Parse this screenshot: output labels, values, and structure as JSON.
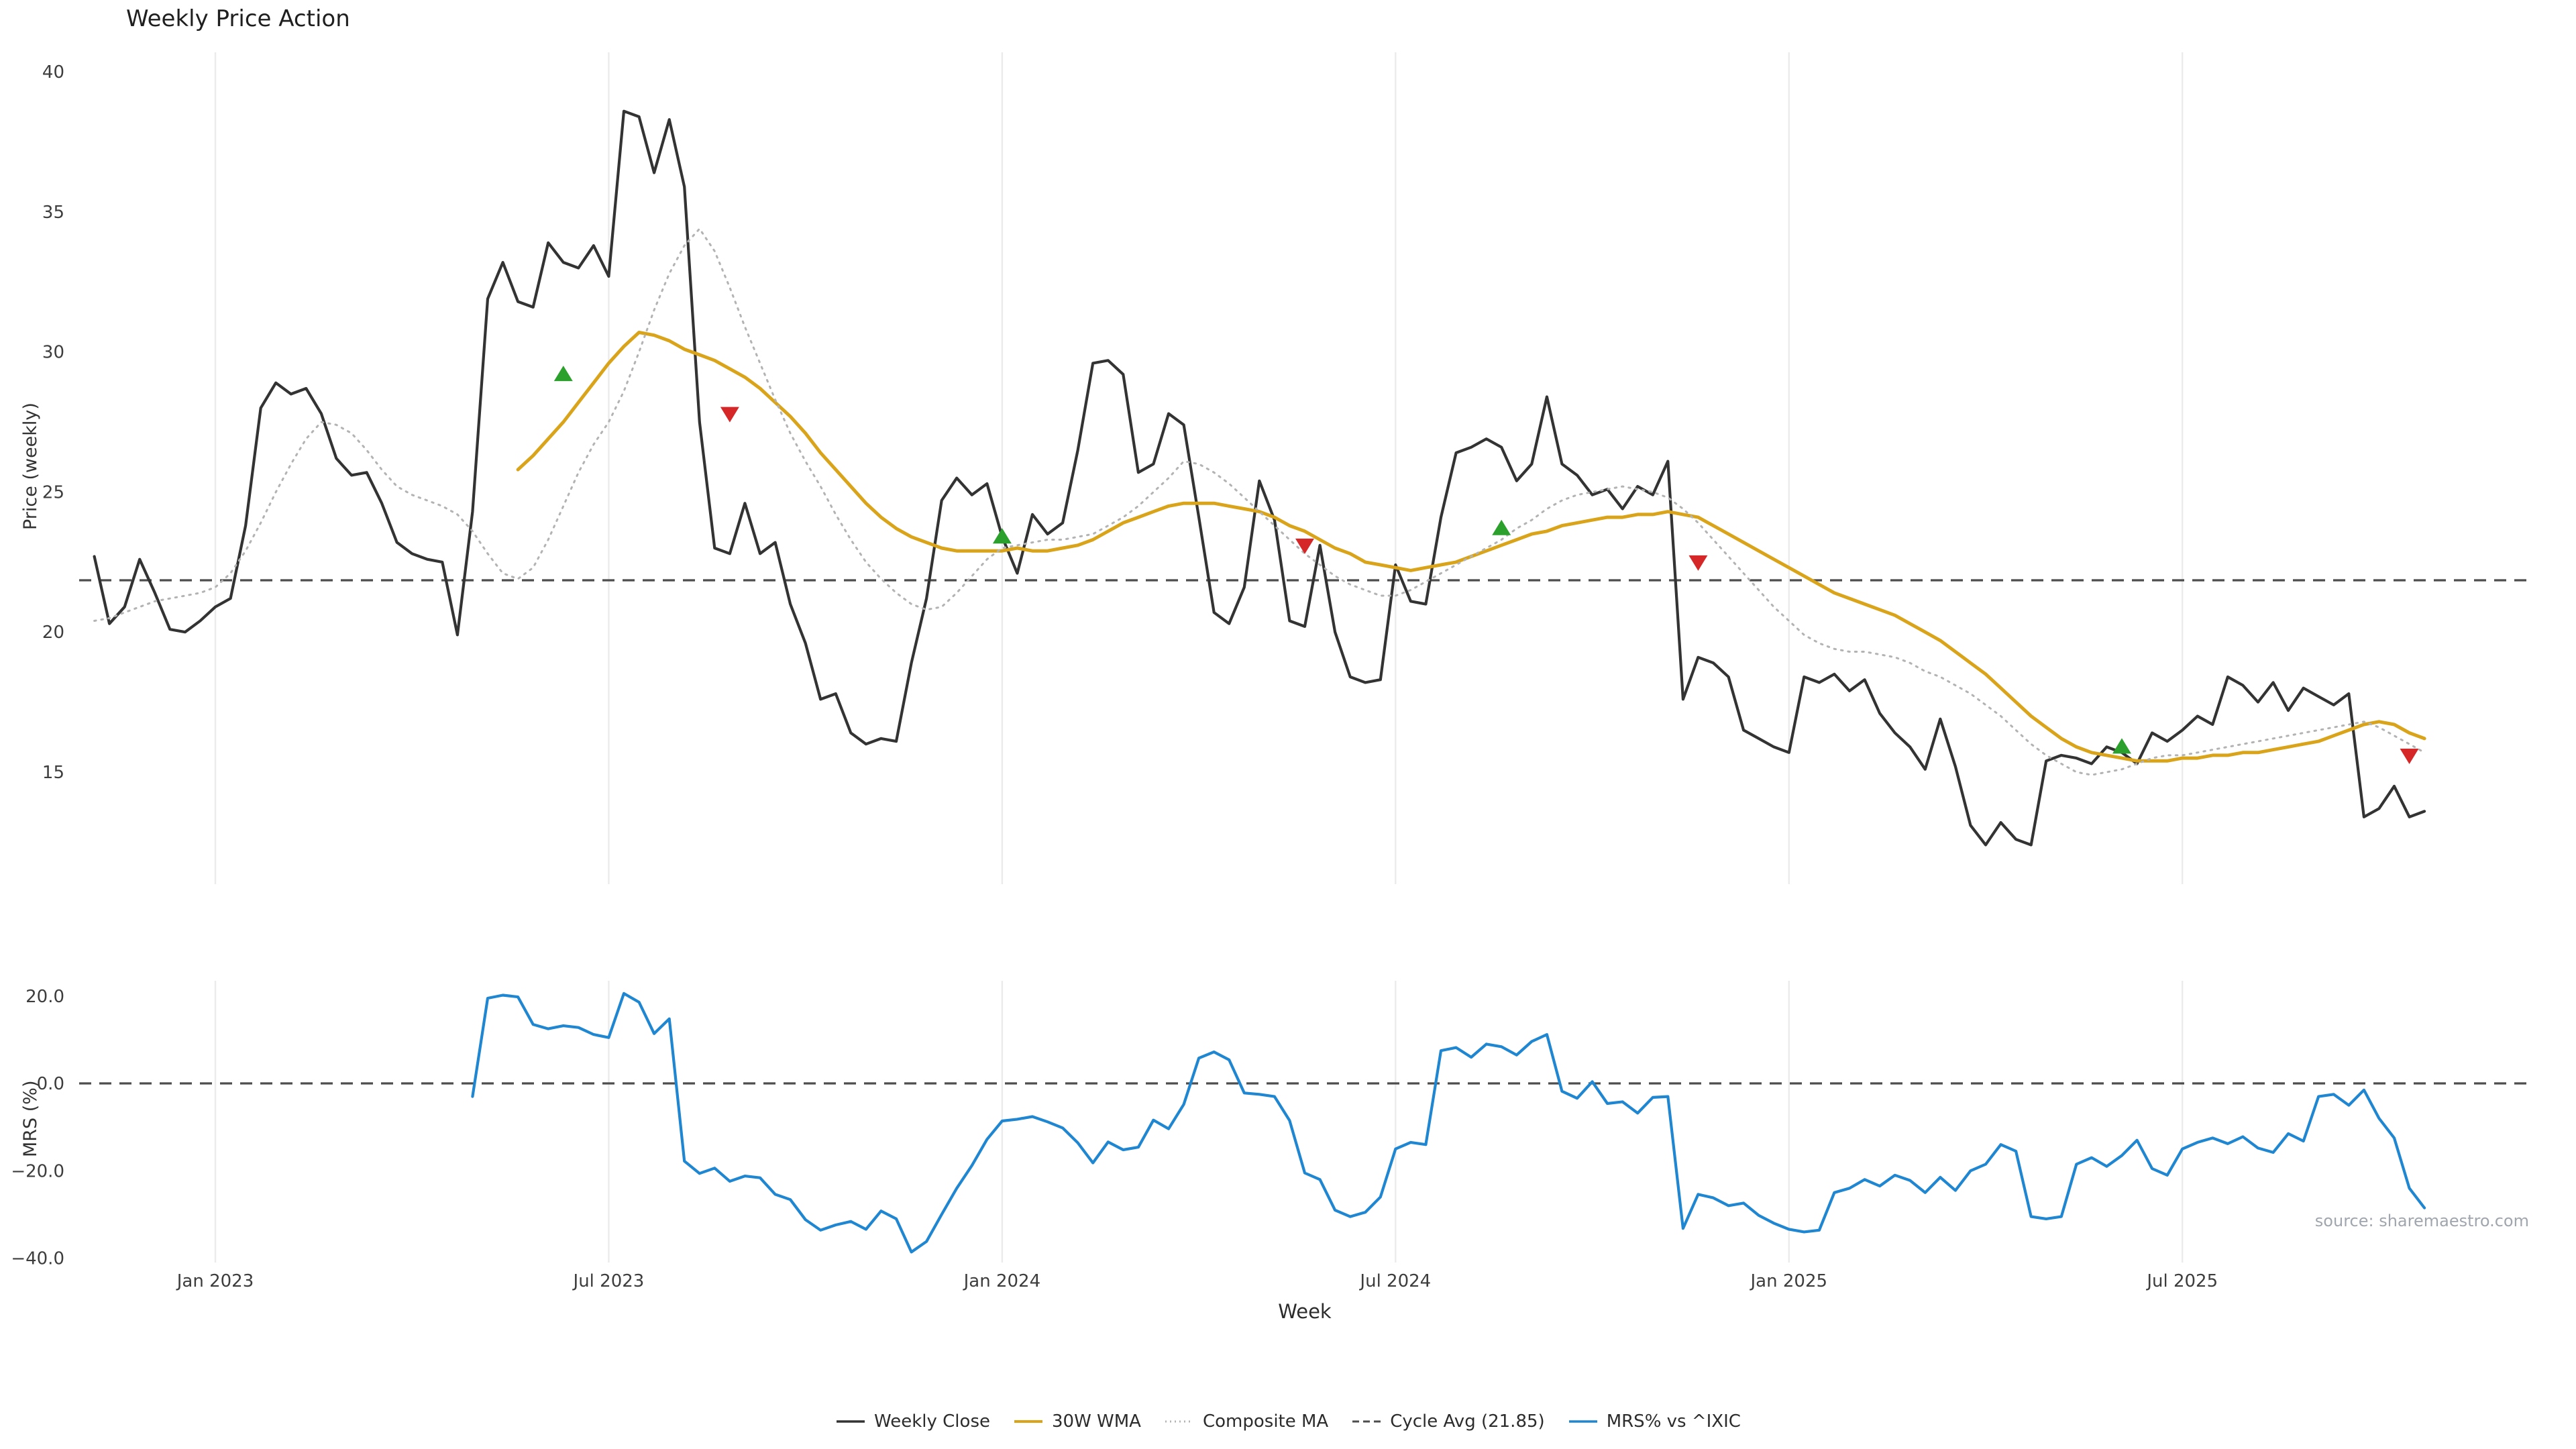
{
  "title": "Weekly Price Action",
  "axes": {
    "price_ylabel": "Price (weekly)",
    "mrs_ylabel": "MRS (%)",
    "xlabel": "Week"
  },
  "source_note": "source: sharemaestro.com",
  "legend": [
    {
      "label": "Weekly Close",
      "color": "#333333",
      "style": "solid"
    },
    {
      "label": "30W WMA",
      "color": "#d9a419",
      "style": "solid"
    },
    {
      "label": "Composite MA",
      "color": "#b3b3b3",
      "style": "dotted"
    },
    {
      "label": "Cycle Avg (21.85)",
      "color": "#4d4d4d",
      "style": "dashed"
    },
    {
      "label": "MRS% vs ^IXIC",
      "color": "#1f86d1",
      "style": "solid"
    }
  ],
  "chart_data": [
    {
      "type": "line",
      "panel": "price",
      "title": "Weekly Price Action",
      "ylabel": "Price (weekly)",
      "ylim": [
        11,
        40.7
      ],
      "yticks": [
        15,
        20,
        25,
        30,
        35,
        40
      ],
      "x_unit": "week_index",
      "xlim": [
        -1,
        161
      ],
      "grid": "vertical-only",
      "xticks": [
        {
          "week": 8,
          "label": "Jan 2023"
        },
        {
          "week": 34,
          "label": "Jul 2023"
        },
        {
          "week": 60,
          "label": "Jan 2024"
        },
        {
          "week": 86,
          "label": "Jul 2024"
        },
        {
          "week": 112,
          "label": "Jan 2025"
        },
        {
          "week": 138,
          "label": "Jul 2025"
        }
      ],
      "cycle_avg": 21.85,
      "series": [
        {
          "name": "Weekly Close",
          "start_week": 0,
          "color": "#333333",
          "dash": "solid",
          "width": 4.2,
          "values": [
            22.7,
            20.3,
            20.9,
            22.6,
            21.4,
            20.1,
            20.0,
            20.4,
            20.9,
            21.2,
            23.8,
            28.0,
            28.9,
            28.5,
            28.7,
            27.8,
            26.2,
            25.6,
            25.7,
            24.6,
            23.2,
            22.8,
            22.6,
            22.5,
            19.9,
            24.3,
            31.9,
            33.2,
            31.8,
            31.6,
            33.9,
            33.2,
            33.0,
            33.8,
            32.7,
            38.6,
            38.4,
            36.4,
            38.3,
            35.9,
            27.5,
            23.0,
            22.8,
            24.6,
            22.8,
            23.2,
            21.0,
            19.6,
            17.6,
            17.8,
            16.4,
            16.0,
            16.2,
            16.1,
            18.9,
            21.2,
            24.7,
            25.5,
            24.9,
            25.3,
            23.4,
            22.1,
            24.2,
            23.5,
            23.9,
            26.5,
            29.6,
            29.7,
            29.2,
            25.7,
            26.0,
            27.8,
            27.4,
            24.1,
            20.7,
            20.3,
            21.6,
            25.4,
            24.0,
            20.4,
            20.2,
            23.1,
            20.0,
            18.4,
            18.2,
            18.3,
            22.4,
            21.1,
            21.0,
            24.1,
            26.4,
            26.6,
            26.9,
            26.6,
            25.4,
            26.0,
            28.4,
            26.0,
            25.6,
            24.9,
            25.1,
            24.4,
            25.2,
            24.9,
            26.1,
            17.6,
            19.1,
            18.9,
            18.4,
            16.5,
            16.2,
            15.9,
            15.7,
            18.4,
            18.2,
            18.5,
            17.9,
            18.3,
            17.1,
            16.4,
            15.9,
            15.1,
            16.9,
            15.2,
            13.1,
            12.4,
            13.2,
            12.6,
            12.4,
            15.4,
            15.6,
            15.5,
            15.3,
            15.9,
            15.7,
            15.3,
            16.4,
            16.1,
            16.5,
            17.0,
            16.7,
            18.4,
            18.1,
            17.5,
            18.2,
            17.2,
            18.0,
            17.7,
            17.4,
            17.8,
            13.4,
            13.7,
            14.5,
            13.4,
            13.6
          ]
        },
        {
          "name": "30W WMA",
          "start_week": 28,
          "color": "#d9a419",
          "dash": "solid",
          "width": 5,
          "values": [
            25.8,
            26.3,
            26.9,
            27.5,
            28.2,
            28.9,
            29.6,
            30.2,
            30.7,
            30.6,
            30.4,
            30.1,
            29.9,
            29.7,
            29.4,
            29.1,
            28.7,
            28.2,
            27.7,
            27.1,
            26.4,
            25.8,
            25.2,
            24.6,
            24.1,
            23.7,
            23.4,
            23.2,
            23.0,
            22.9,
            22.9,
            22.9,
            22.9,
            23.0,
            22.9,
            22.9,
            23.0,
            23.1,
            23.3,
            23.6,
            23.9,
            24.1,
            24.3,
            24.5,
            24.6,
            24.6,
            24.6,
            24.5,
            24.4,
            24.3,
            24.1,
            23.8,
            23.6,
            23.3,
            23.0,
            22.8,
            22.5,
            22.4,
            22.3,
            22.2,
            22.3,
            22.4,
            22.5,
            22.7,
            22.9,
            23.1,
            23.3,
            23.5,
            23.6,
            23.8,
            23.9,
            24.0,
            24.1,
            24.1,
            24.2,
            24.2,
            24.3,
            24.2,
            24.1,
            23.8,
            23.5,
            23.2,
            22.9,
            22.6,
            22.3,
            22.0,
            21.7,
            21.4,
            21.2,
            21.0,
            20.8,
            20.6,
            20.3,
            20.0,
            19.7,
            19.3,
            18.9,
            18.5,
            18.0,
            17.5,
            17.0,
            16.6,
            16.2,
            15.9,
            15.7,
            15.6,
            15.5,
            15.4,
            15.4,
            15.4,
            15.5,
            15.5,
            15.6,
            15.6,
            15.7,
            15.7,
            15.8,
            15.9,
            16.0,
            16.1,
            16.3,
            16.5,
            16.7,
            16.8,
            16.7,
            16.4,
            16.2
          ]
        },
        {
          "name": "Composite MA",
          "start_week": 0,
          "color": "#b3b3b3",
          "dash": "dotted",
          "width": 3,
          "values": [
            20.4,
            20.5,
            20.7,
            20.9,
            21.1,
            21.2,
            21.3,
            21.4,
            21.6,
            22.1,
            22.9,
            23.9,
            25.0,
            26.0,
            26.9,
            27.5,
            27.4,
            27.1,
            26.5,
            25.8,
            25.2,
            24.9,
            24.7,
            24.5,
            24.2,
            23.6,
            22.8,
            22.1,
            21.9,
            22.3,
            23.3,
            24.5,
            25.7,
            26.7,
            27.5,
            28.6,
            30.0,
            31.5,
            32.8,
            33.8,
            34.4,
            33.6,
            32.3,
            30.9,
            29.6,
            28.3,
            27.1,
            26.1,
            25.2,
            24.2,
            23.3,
            22.5,
            21.9,
            21.4,
            21.0,
            20.8,
            20.9,
            21.4,
            22.0,
            22.6,
            23.0,
            23.1,
            23.2,
            23.3,
            23.3,
            23.4,
            23.5,
            23.8,
            24.1,
            24.5,
            25.0,
            25.5,
            26.1,
            26.0,
            25.7,
            25.3,
            24.8,
            24.3,
            23.8,
            23.3,
            22.8,
            22.4,
            22.0,
            21.7,
            21.5,
            21.3,
            21.3,
            21.5,
            21.8,
            22.1,
            22.4,
            22.7,
            23.0,
            23.3,
            23.7,
            24.0,
            24.4,
            24.7,
            24.9,
            25.0,
            25.1,
            25.2,
            25.1,
            25.0,
            24.8,
            24.4,
            23.9,
            23.3,
            22.7,
            22.1,
            21.5,
            20.9,
            20.4,
            19.9,
            19.6,
            19.4,
            19.3,
            19.3,
            19.2,
            19.1,
            18.9,
            18.6,
            18.4,
            18.1,
            17.8,
            17.4,
            17.0,
            16.5,
            16.0,
            15.6,
            15.3,
            15.0,
            14.9,
            15.0,
            15.1,
            15.3,
            15.5,
            15.6,
            15.6,
            15.7,
            15.8,
            15.9,
            16.0,
            16.1,
            16.2,
            16.3,
            16.4,
            16.5,
            16.6,
            16.7,
            16.8,
            16.6,
            16.3,
            16.0,
            15.7
          ]
        }
      ],
      "markers": {
        "buy_color": "#2ca02c",
        "sell_color": "#d62728",
        "buy": [
          {
            "week": 31,
            "price": 29.2
          },
          {
            "week": 60,
            "price": 23.4
          },
          {
            "week": 93,
            "price": 23.7
          },
          {
            "week": 134,
            "price": 15.9
          }
        ],
        "sell": [
          {
            "week": 42,
            "price": 27.8
          },
          {
            "week": 80,
            "price": 23.1
          },
          {
            "week": 106,
            "price": 22.5
          },
          {
            "week": 153,
            "price": 15.6
          }
        ]
      }
    },
    {
      "type": "line",
      "panel": "mrs",
      "ylabel": "MRS (%)",
      "ylim": [
        -41,
        23.5
      ],
      "yticks": [
        {
          "v": 20,
          "label": "20.0"
        },
        {
          "v": 0,
          "label": "0.0"
        },
        {
          "v": -20,
          "label": "−20.0"
        },
        {
          "v": -40,
          "label": "−40.0"
        }
      ],
      "zero_line": 0,
      "series": [
        {
          "name": "MRS% vs ^IXIC",
          "start_week": 25,
          "color": "#1f86d1",
          "dash": "solid",
          "width": 4.2,
          "values": [
            -3.0,
            19.5,
            20.2,
            19.8,
            13.5,
            12.5,
            13.2,
            12.8,
            11.2,
            10.5,
            20.6,
            18.6,
            11.4,
            14.8,
            -17.8,
            -20.6,
            -19.4,
            -22.4,
            -21.2,
            -21.6,
            -25.4,
            -26.6,
            -31.2,
            -33.6,
            -32.4,
            -31.6,
            -33.4,
            -29.2,
            -31.0,
            -38.6,
            -36.2,
            -30.0,
            -24.0,
            -18.8,
            -12.8,
            -8.6,
            -8.2,
            -7.6,
            -8.8,
            -10.2,
            -13.6,
            -18.2,
            -13.4,
            -15.2,
            -14.6,
            -8.4,
            -10.4,
            -4.8,
            5.8,
            7.2,
            5.4,
            -2.2,
            -2.5,
            -3.0,
            -8.5,
            -20.5,
            -22.0,
            -29.0,
            -30.5,
            -29.5,
            -26.0,
            -15.0,
            -13.5,
            -14.0,
            7.5,
            8.2,
            6.0,
            9.0,
            8.4,
            6.5,
            9.6,
            11.2,
            -1.8,
            -3.4,
            0.4,
            -4.6,
            -4.2,
            -6.8,
            -3.2,
            -3.0,
            -33.2,
            -25.4,
            -26.2,
            -28.0,
            -27.4,
            -30.2,
            -32.0,
            -33.4,
            -34.0,
            -33.6,
            -25.0,
            -24.0,
            -22.0,
            -23.5,
            -21.0,
            -22.2,
            -25.0,
            -21.5,
            -24.5,
            -20.0,
            -18.5,
            -14.0,
            -15.5,
            -30.5,
            -31.0,
            -30.5,
            -18.5,
            -17.0,
            -19.0,
            -16.5,
            -13.0,
            -19.5,
            -21.0,
            -15.0,
            -13.5,
            -12.5,
            -13.8,
            -12.2,
            -14.8,
            -15.8,
            -11.5,
            -13.2,
            -3.0,
            -2.5,
            -5.0,
            -1.5,
            -8.0,
            -12.5,
            -24.0,
            -28.5
          ]
        }
      ]
    }
  ]
}
